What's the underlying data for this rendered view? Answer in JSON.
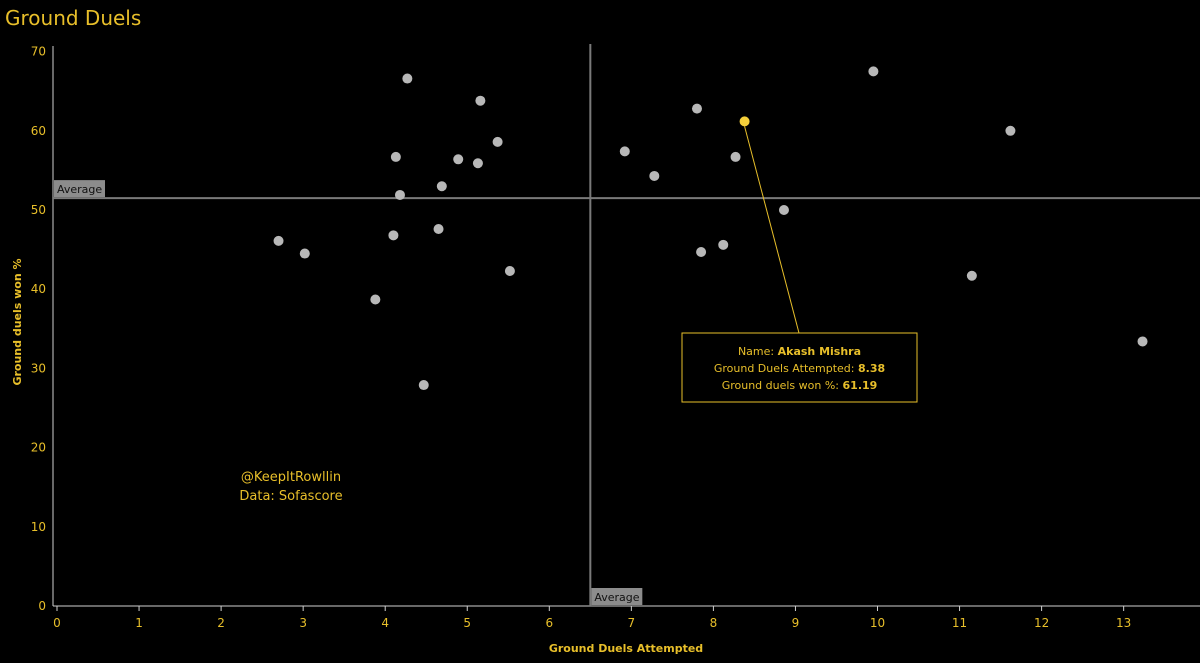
{
  "title": "Ground Duels",
  "colors": {
    "accent": "#e8bf2a",
    "point": "#b8b8b8",
    "highlight": "#f5cf3a",
    "average_line": "#7a7a7a"
  },
  "chart_data": {
    "type": "scatter",
    "xlabel": "Ground Duels Attempted",
    "ylabel": "Ground duels won %",
    "xlim": [
      0,
      13.9
    ],
    "ylim": [
      0,
      71
    ],
    "x_ticks": [
      0,
      1,
      2,
      3,
      4,
      5,
      6,
      7,
      8,
      9,
      10,
      11,
      12,
      13
    ],
    "y_ticks": [
      0,
      10,
      20,
      30,
      40,
      50,
      60,
      70
    ],
    "average_x": 6.5,
    "average_y": 51.5,
    "average_label": "Average",
    "points": [
      {
        "x": 2.7,
        "y": 46.1
      },
      {
        "x": 3.02,
        "y": 44.5
      },
      {
        "x": 3.88,
        "y": 38.7
      },
      {
        "x": 4.1,
        "y": 46.8
      },
      {
        "x": 4.13,
        "y": 56.7
      },
      {
        "x": 4.18,
        "y": 51.9
      },
      {
        "x": 4.27,
        "y": 66.6
      },
      {
        "x": 4.47,
        "y": 27.9
      },
      {
        "x": 4.65,
        "y": 47.6
      },
      {
        "x": 4.69,
        "y": 53.0
      },
      {
        "x": 4.89,
        "y": 56.4
      },
      {
        "x": 5.13,
        "y": 55.9
      },
      {
        "x": 5.16,
        "y": 63.8
      },
      {
        "x": 5.37,
        "y": 58.6
      },
      {
        "x": 5.52,
        "y": 42.3
      },
      {
        "x": 6.92,
        "y": 57.4
      },
      {
        "x": 7.28,
        "y": 54.3
      },
      {
        "x": 7.8,
        "y": 62.8
      },
      {
        "x": 7.85,
        "y": 44.7
      },
      {
        "x": 8.12,
        "y": 45.6
      },
      {
        "x": 8.27,
        "y": 56.7
      },
      {
        "x": 8.38,
        "y": 61.19,
        "highlight": true
      },
      {
        "x": 8.86,
        "y": 50.0
      },
      {
        "x": 9.95,
        "y": 67.5
      },
      {
        "x": 11.15,
        "y": 41.7
      },
      {
        "x": 11.62,
        "y": 60.0
      },
      {
        "x": 13.23,
        "y": 33.4
      }
    ]
  },
  "tooltip": {
    "name_label": "Name:",
    "name_value": "Akash Mishra",
    "x_label": "Ground Duels Attempted:",
    "x_value": "8.38",
    "y_label": "Ground duels won %:",
    "y_value": "61.19"
  },
  "credits": {
    "handle": "@KeepItRowllin",
    "source": "Data: Sofascore"
  }
}
